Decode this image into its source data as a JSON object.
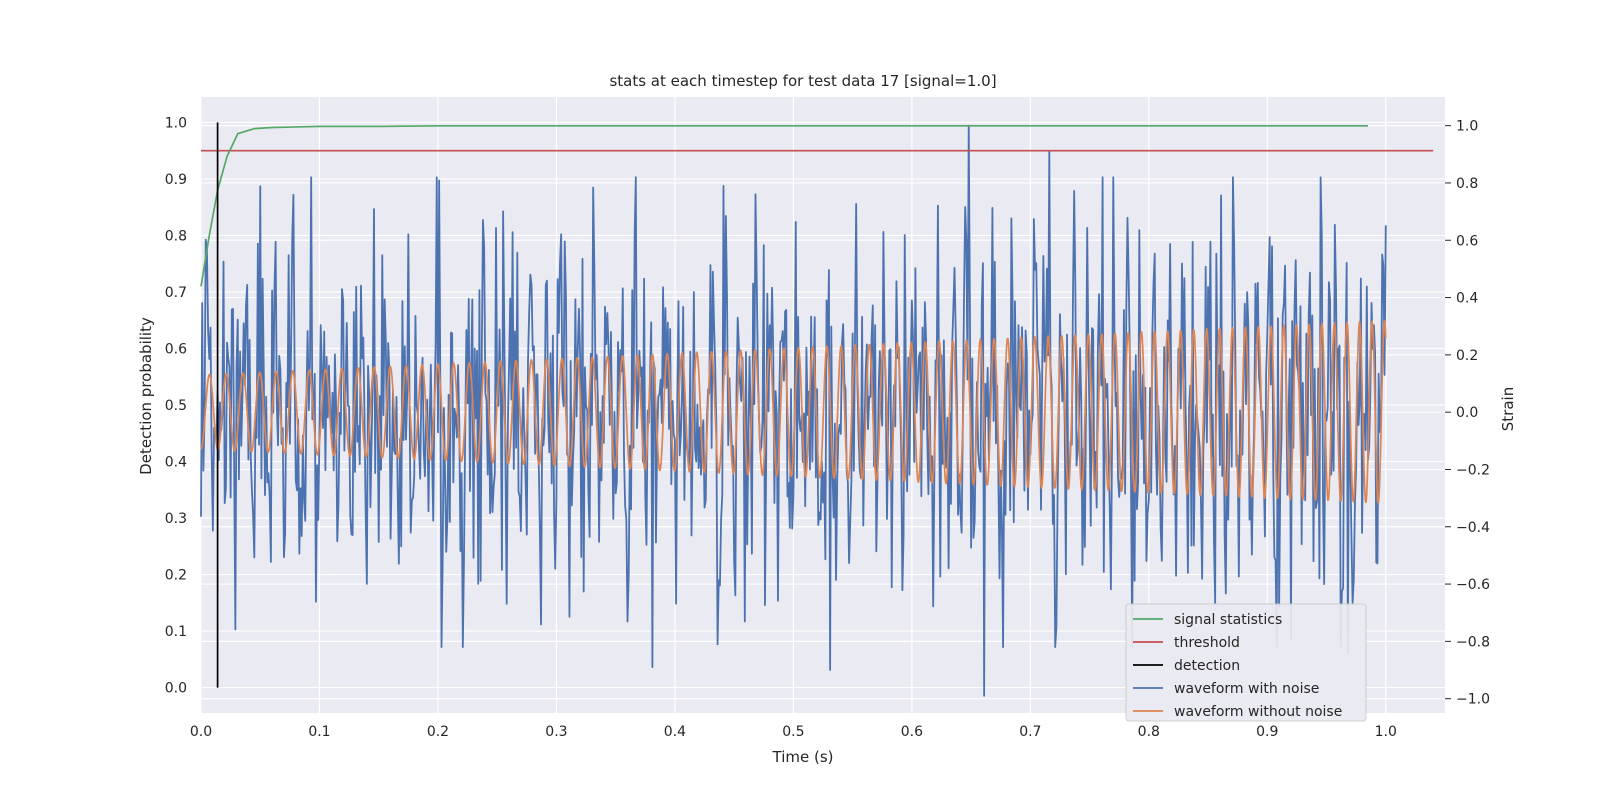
{
  "chart_data": {
    "type": "line",
    "title": "stats at each timestep for test data 17 [signal=1.0]",
    "xlabel": "Time (s)",
    "ylabel": "Detection probability",
    "ylabel_right": "Strain",
    "xlim": [
      0.0,
      1.05
    ],
    "ylim": [
      -0.045,
      1.045
    ],
    "ylim_right": [
      -1.05,
      1.1
    ],
    "x_ticks": [
      "0.0",
      "0.1",
      "0.2",
      "0.3",
      "0.4",
      "0.5",
      "0.6",
      "0.7",
      "0.8",
      "0.9",
      "1.0"
    ],
    "y_ticks": [
      "0.0",
      "0.1",
      "0.2",
      "0.3",
      "0.4",
      "0.5",
      "0.6",
      "0.7",
      "0.8",
      "0.9",
      "1.0"
    ],
    "y_ticks_right": [
      "−1.0",
      "−0.8",
      "−0.6",
      "−0.4",
      "−0.2",
      "0.0",
      "0.2",
      "0.4",
      "0.6",
      "0.8",
      "1.0"
    ],
    "grid": true,
    "legend_position": "lower-right",
    "legend": [
      "signal statistics",
      "threshold",
      "detection",
      "waveform with noise",
      "waveform without noise"
    ],
    "colors": {
      "signal statistics": "#55a868",
      "threshold": "#c44e52",
      "detection": "#000000",
      "waveform with noise": "#4c72b0",
      "waveform without noise": "#dd8452",
      "plot_background": "#eaeaf2",
      "grid": "#ffffff"
    },
    "series": [
      {
        "name": "signal statistics",
        "axis": "left",
        "x": [
          0.0,
          0.007,
          0.014,
          0.022,
          0.031,
          0.045,
          0.06,
          0.08,
          0.1,
          0.15,
          0.2,
          0.3,
          0.4,
          0.5,
          0.6,
          0.7,
          0.8,
          0.9,
          0.985
        ],
        "y": [
          0.71,
          0.8,
          0.88,
          0.94,
          0.98,
          0.989,
          0.991,
          0.992,
          0.993,
          0.993,
          0.994,
          0.994,
          0.994,
          0.994,
          0.994,
          0.994,
          0.994,
          0.994,
          0.994
        ]
      },
      {
        "name": "threshold",
        "axis": "left",
        "x": [
          0.0,
          1.04
        ],
        "y": [
          0.95,
          0.95
        ]
      },
      {
        "name": "detection",
        "axis": "left",
        "x": [
          0.014,
          0.014
        ],
        "y": [
          0.0,
          1.0
        ]
      },
      {
        "name": "waveform with noise",
        "axis": "right",
        "generated": "noisy_chirp",
        "x_range": [
          0.0,
          1.0
        ],
        "n_points": 1000,
        "y_range": [
          -1.0,
          1.0
        ],
        "peaks": [
          {
            "x": 0.648,
            "y": 1.0
          },
          {
            "x": 0.661,
            "y": -0.99
          },
          {
            "x": 0.381,
            "y": -0.89
          },
          {
            "x": 0.531,
            "y": -0.9
          },
          {
            "x": 0.716,
            "y": 0.91
          },
          {
            "x": 0.948,
            "y": -0.6
          },
          {
            "x": 0.968,
            "y": -0.84
          }
        ]
      },
      {
        "name": "waveform without noise",
        "axis": "right",
        "generated": "chirp",
        "x_range": [
          0.0,
          1.0
        ],
        "amplitude_start": 0.13,
        "amplitude_end": 0.32,
        "cycles": 70
      }
    ]
  }
}
